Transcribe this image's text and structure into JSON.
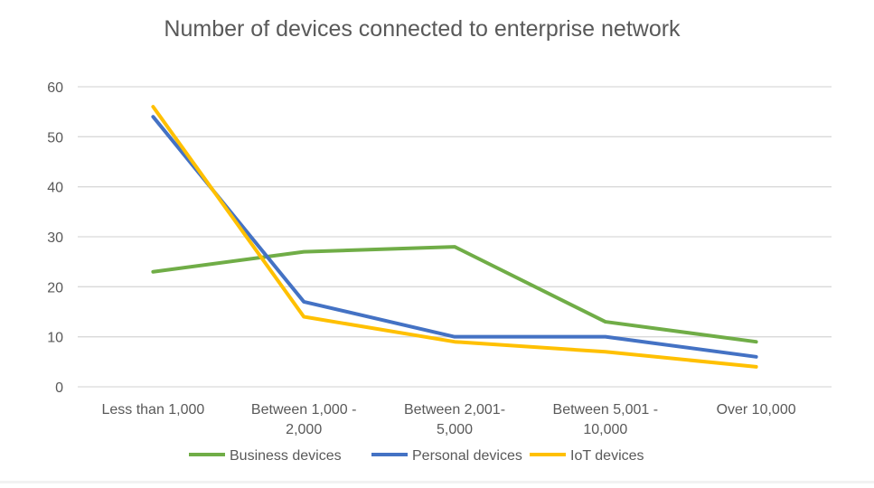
{
  "chart_data": {
    "type": "line",
    "title": "Number of devices connected to enterprise network",
    "xlabel": "",
    "ylabel": "",
    "ylim": [
      0,
      60
    ],
    "yticks": [
      0,
      10,
      20,
      30,
      40,
      50,
      60
    ],
    "grid": true,
    "legend_position": "bottom",
    "categories": [
      [
        "Less than 1,000"
      ],
      [
        "Between 1,000 -",
        "2,000"
      ],
      [
        "Between 2,001-",
        "5,000"
      ],
      [
        "Between 5,001 -",
        "10,000"
      ],
      [
        "Over 10,000"
      ]
    ],
    "series": [
      {
        "name": "Business devices",
        "color": "#70ad47",
        "values": [
          23,
          27,
          28,
          13,
          9
        ]
      },
      {
        "name": "Personal devices",
        "color": "#4472c4",
        "values": [
          54,
          17,
          10,
          10,
          6
        ]
      },
      {
        "name": "IoT devices",
        "color": "#ffc000",
        "values": [
          56,
          14,
          9,
          7,
          4
        ]
      }
    ]
  }
}
